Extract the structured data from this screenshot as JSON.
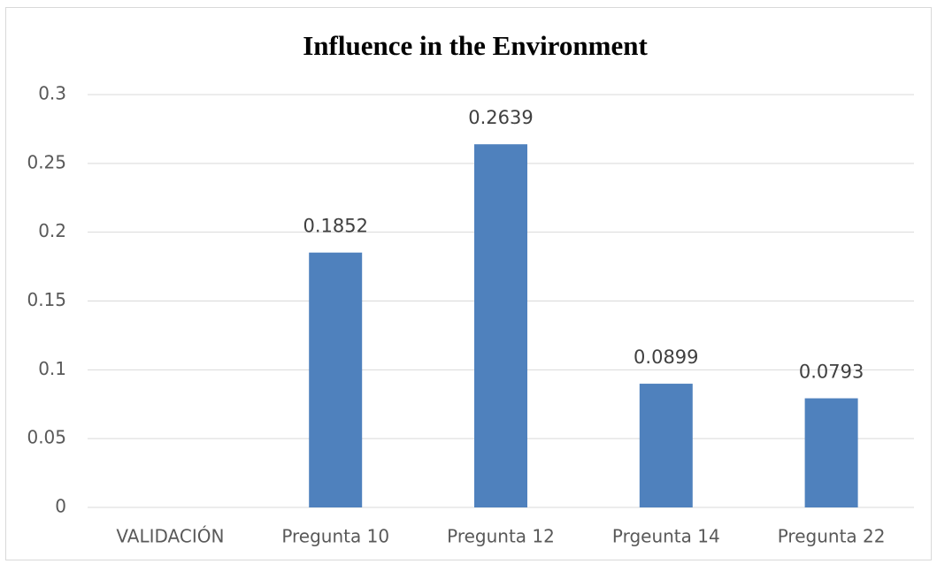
{
  "chart_data": {
    "type": "bar",
    "title": "Influence in the Environment",
    "categories": [
      "VALIDACIÓN",
      "Pregunta 10",
      "Pregunta 12",
      "Prgeunta 14",
      "Pregunta 22"
    ],
    "values": [
      null,
      0.1852,
      0.2639,
      0.0899,
      0.0793
    ],
    "color": "#4f81bd",
    "ylim": [
      0,
      0.3
    ],
    "yticks": [
      0,
      0.05,
      0.1,
      0.15,
      0.2,
      0.25,
      0.3
    ],
    "grid": true
  }
}
